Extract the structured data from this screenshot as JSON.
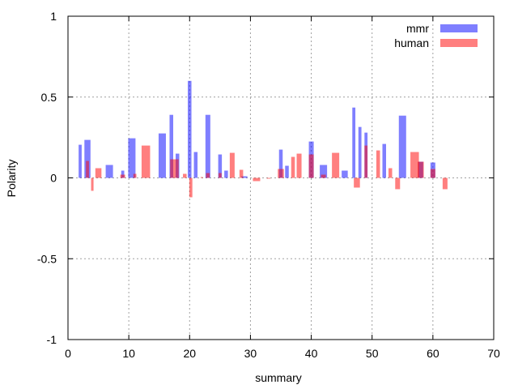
{
  "chart_data": {
    "type": "bar",
    "title": "",
    "xlabel": "summary",
    "ylabel": "Polarity",
    "xlim": [
      0,
      70
    ],
    "ylim": [
      -1,
      1
    ],
    "xticks": [
      0,
      10,
      20,
      30,
      40,
      50,
      60,
      70
    ],
    "xtick_labels": [
      "0",
      "10",
      "20",
      "30",
      "40",
      "50",
      "60",
      "70"
    ],
    "yticks": [
      -1,
      -0.5,
      0,
      0.5,
      1
    ],
    "ytick_labels": [
      "-1",
      "-0.5",
      "0",
      "0.5",
      "1"
    ],
    "grid": true,
    "legend_position": "top-right",
    "series": [
      {
        "name": "mmr",
        "color": "#0000ff",
        "opacity": 0.5,
        "bars": [
          {
            "x": 2,
            "w": 0.5,
            "y": 0.205
          },
          {
            "x": 3.2,
            "w": 1.0,
            "y": 0.235
          },
          {
            "x": 6.8,
            "w": 1.2,
            "y": 0.08
          },
          {
            "x": 9.0,
            "w": 0.5,
            "y": 0.045
          },
          {
            "x": 10.5,
            "w": 1.2,
            "y": 0.245
          },
          {
            "x": 15.5,
            "w": 1.2,
            "y": 0.275
          },
          {
            "x": 17.0,
            "w": 0.6,
            "y": 0.39
          },
          {
            "x": 18.0,
            "w": 0.6,
            "y": 0.15
          },
          {
            "x": 20.0,
            "w": 0.6,
            "y": 0.6
          },
          {
            "x": 21.0,
            "w": 0.6,
            "y": 0.16
          },
          {
            "x": 23.0,
            "w": 0.8,
            "y": 0.39
          },
          {
            "x": 25.0,
            "w": 0.6,
            "y": 0.145
          },
          {
            "x": 26.0,
            "w": 0.6,
            "y": 0.045
          },
          {
            "x": 29.0,
            "w": 1.0,
            "y": 0.01
          },
          {
            "x": 35.0,
            "w": 0.6,
            "y": 0.175
          },
          {
            "x": 36.0,
            "w": 0.6,
            "y": 0.075
          },
          {
            "x": 40.0,
            "w": 0.8,
            "y": 0.225
          },
          {
            "x": 42.0,
            "w": 1.2,
            "y": 0.08
          },
          {
            "x": 45.5,
            "w": 1.0,
            "y": 0.045
          },
          {
            "x": 47.0,
            "w": 0.5,
            "y": 0.435
          },
          {
            "x": 48.0,
            "w": 0.5,
            "y": 0.315
          },
          {
            "x": 49.0,
            "w": 0.5,
            "y": 0.28
          },
          {
            "x": 52.0,
            "w": 0.6,
            "y": 0.21
          },
          {
            "x": 55.0,
            "w": 1.2,
            "y": 0.385
          },
          {
            "x": 58.0,
            "w": 0.8,
            "y": 0.1
          },
          {
            "x": 60.0,
            "w": 0.8,
            "y": 0.095
          }
        ]
      },
      {
        "name": "human",
        "color": "#ff0000",
        "opacity": 0.5,
        "bars": [
          {
            "x": 3.2,
            "w": 0.5,
            "y": 0.105
          },
          {
            "x": 4.0,
            "w": 0.4,
            "y": -0.08
          },
          {
            "x": 5.0,
            "w": 1.0,
            "y": 0.06
          },
          {
            "x": 9.0,
            "w": 0.8,
            "y": 0.02
          },
          {
            "x": 11.0,
            "w": 0.5,
            "y": 0.025
          },
          {
            "x": 12.8,
            "w": 1.4,
            "y": 0.2
          },
          {
            "x": 17.5,
            "w": 1.4,
            "y": 0.115
          },
          {
            "x": 19.2,
            "w": 0.6,
            "y": 0.025
          },
          {
            "x": 20.2,
            "w": 0.5,
            "y": -0.12
          },
          {
            "x": 22.0,
            "w": 0.4,
            "y": 0.005
          },
          {
            "x": 23.0,
            "w": 0.6,
            "y": 0.03
          },
          {
            "x": 25.0,
            "w": 0.5,
            "y": 0.03
          },
          {
            "x": 27.0,
            "w": 0.8,
            "y": 0.155
          },
          {
            "x": 28.5,
            "w": 0.6,
            "y": 0.05
          },
          {
            "x": 31.0,
            "w": 1.2,
            "y": -0.02
          },
          {
            "x": 33.0,
            "w": 0.6,
            "y": -0.005
          },
          {
            "x": 35.0,
            "w": 1.0,
            "y": 0.055
          },
          {
            "x": 37.0,
            "w": 0.6,
            "y": 0.13
          },
          {
            "x": 38.0,
            "w": 0.8,
            "y": 0.15
          },
          {
            "x": 40.0,
            "w": 0.8,
            "y": 0.145
          },
          {
            "x": 42.0,
            "w": 0.8,
            "y": 0.02
          },
          {
            "x": 44.0,
            "w": 1.2,
            "y": 0.155
          },
          {
            "x": 47.5,
            "w": 1.0,
            "y": -0.06
          },
          {
            "x": 49.0,
            "w": 0.5,
            "y": 0.2
          },
          {
            "x": 51.0,
            "w": 0.6,
            "y": 0.17
          },
          {
            "x": 53.0,
            "w": 0.6,
            "y": 0.06
          },
          {
            "x": 54.2,
            "w": 0.8,
            "y": -0.07
          },
          {
            "x": 57.0,
            "w": 1.4,
            "y": 0.16
          },
          {
            "x": 58.0,
            "w": 1.0,
            "y": 0.1
          },
          {
            "x": 60.0,
            "w": 0.8,
            "y": 0.055
          },
          {
            "x": 62.0,
            "w": 0.8,
            "y": -0.07
          }
        ]
      }
    ]
  }
}
